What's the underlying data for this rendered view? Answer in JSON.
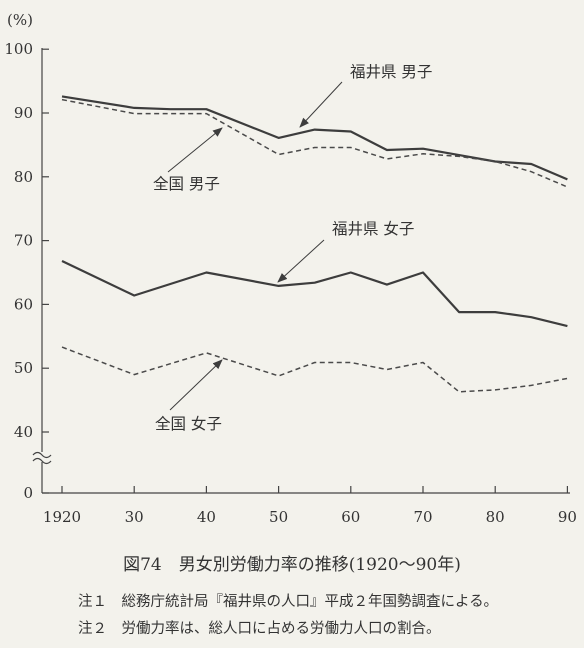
{
  "chart_data": {
    "type": "line",
    "y_unit": "(%)",
    "ylim": [
      0,
      100
    ],
    "y_axis_break": true,
    "y_ticks": [
      "0",
      "40",
      "50",
      "60",
      "70",
      "80",
      "90",
      "100"
    ],
    "x_tick_labels": [
      "1920",
      "30",
      "40",
      "50",
      "60",
      "70",
      "80",
      "90"
    ],
    "x_ticks": [
      1920,
      1930,
      1940,
      1950,
      1960,
      1970,
      1980,
      1990
    ],
    "grid": false,
    "legend": "inline annotations with arrows",
    "series": [
      {
        "name": "福井県 男子",
        "style": "solid",
        "x": [
          1920,
          1930,
          1935,
          1940,
          1950,
          1955,
          1960,
          1965,
          1970,
          1975,
          1980,
          1985,
          1990
        ],
        "values": [
          92.6,
          90.8,
          90.6,
          90.6,
          86.1,
          87.4,
          87.1,
          84.2,
          84.4,
          83.4,
          82.4,
          82.0,
          79.6
        ]
      },
      {
        "name": "全国 男子",
        "style": "dashed",
        "x": [
          1920,
          1930,
          1940,
          1950,
          1955,
          1960,
          1965,
          1970,
          1975,
          1980,
          1985,
          1990
        ],
        "values": [
          92.1,
          89.9,
          89.9,
          83.5,
          84.6,
          84.6,
          82.8,
          83.6,
          83.2,
          82.4,
          80.8,
          78.4
        ]
      },
      {
        "name": "福井県 女子",
        "style": "solid",
        "x": [
          1920,
          1930,
          1940,
          1950,
          1955,
          1960,
          1965,
          1970,
          1975,
          1980,
          1985,
          1990
        ],
        "values": [
          66.8,
          61.4,
          65.0,
          62.9,
          63.4,
          65.0,
          63.1,
          65.0,
          58.8,
          58.8,
          58.0,
          56.6
        ]
      },
      {
        "name": "全国 女子",
        "style": "dashed",
        "x": [
          1920,
          1930,
          1940,
          1950,
          1955,
          1960,
          1965,
          1970,
          1975,
          1980,
          1985,
          1990
        ],
        "values": [
          53.3,
          49.0,
          52.4,
          48.8,
          50.9,
          50.9,
          49.8,
          50.9,
          46.3,
          46.6,
          47.3,
          48.4
        ]
      }
    ],
    "annotations": [
      {
        "text": "福井県  男子",
        "target_series": 0
      },
      {
        "text": "全国  男子",
        "target_series": 1
      },
      {
        "text": "福井県  女子",
        "target_series": 2
      },
      {
        "text": "全国  女子",
        "target_series": 3
      }
    ]
  },
  "caption": {
    "title": "図74　男女別労働力率の推移(1920〜90年)",
    "note1": "注１　総務庁統計局『福井県の人口』平成２年国勢調査による。",
    "note2": "注２　労働力率は、総人口に占める労働力人口の割合。"
  }
}
